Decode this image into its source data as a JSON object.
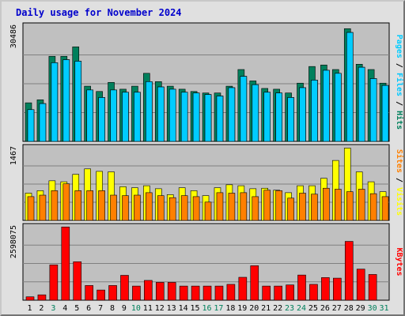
{
  "title": "Daily usage for November 2024",
  "colors": {
    "hits": "#00805c",
    "files": "#00c8ff",
    "pages": "#00ccff",
    "visits": "#ffff00",
    "sites": "#ff8000",
    "kbytes": "#ff0000",
    "panel_bg": "#c0c0c0",
    "weekday_label": "#000000",
    "weekend_label": "#00805c"
  },
  "chart_data": [
    {
      "type": "bar",
      "title": "Daily usage for November 2024",
      "panel": "hits-files-pages",
      "ylabel_max": "30486",
      "right_label": [
        "Pages",
        "Files",
        "Hits"
      ],
      "ylim": [
        0,
        30486
      ],
      "categories": [
        "1",
        "2",
        "3",
        "4",
        "5",
        "6",
        "7",
        "8",
        "9",
        "10",
        "11",
        "12",
        "13",
        "14",
        "15",
        "16",
        "17",
        "18",
        "19",
        "20",
        "21",
        "22",
        "23",
        "24",
        "25",
        "26",
        "27",
        "28",
        "29",
        "30",
        "31"
      ],
      "series": [
        {
          "name": "Hits",
          "values": [
            10200,
            11000,
            22500,
            22500,
            25000,
            14600,
            13200,
            15600,
            13800,
            14600,
            18000,
            15800,
            14600,
            13800,
            13200,
            12800,
            12800,
            14600,
            19000,
            16000,
            14000,
            13800,
            12800,
            15400,
            19800,
            20200,
            19000,
            29800,
            20400,
            19000,
            15400
          ]
        },
        {
          "name": "Files",
          "values": [
            8400,
            10000,
            20800,
            21600,
            21200,
            13600,
            11600,
            13600,
            13000,
            13000,
            15800,
            14400,
            13800,
            13000,
            12800,
            12400,
            12000,
            14200,
            17200,
            15000,
            13000,
            12800,
            11600,
            14200,
            16200,
            18800,
            18000,
            28800,
            19600,
            16600,
            14800
          ]
        },
        {
          "name": "Pages",
          "values": [
            8400,
            10000,
            20800,
            21600,
            21200,
            13600,
            11600,
            13600,
            13000,
            13000,
            15800,
            14400,
            13800,
            13000,
            12800,
            12400,
            12000,
            14200,
            17200,
            15000,
            13000,
            12800,
            11600,
            14200,
            16200,
            18800,
            18000,
            28800,
            19600,
            16600,
            14800
          ]
        }
      ]
    },
    {
      "type": "bar",
      "panel": "visits-sites",
      "ylabel_max": "1467",
      "right_label": [
        "Sites",
        "Visits"
      ],
      "ylim": [
        0,
        1467
      ],
      "categories": [
        "1",
        "2",
        "3",
        "4",
        "5",
        "6",
        "7",
        "8",
        "9",
        "10",
        "11",
        "12",
        "13",
        "14",
        "15",
        "16",
        "17",
        "18",
        "19",
        "20",
        "21",
        "22",
        "23",
        "24",
        "25",
        "26",
        "27",
        "28",
        "29",
        "30",
        "31"
      ],
      "series": [
        {
          "name": "Visits",
          "values": [
            550,
            600,
            800,
            780,
            930,
            1040,
            990,
            980,
            680,
            660,
            700,
            640,
            520,
            660,
            600,
            500,
            660,
            720,
            700,
            640,
            650,
            610,
            560,
            700,
            700,
            850,
            1210,
            1460,
            980,
            780,
            580
          ]
        },
        {
          "name": "Sites",
          "values": [
            480,
            510,
            600,
            740,
            600,
            600,
            600,
            510,
            500,
            510,
            560,
            500,
            460,
            500,
            480,
            370,
            560,
            550,
            560,
            480,
            610,
            600,
            450,
            550,
            530,
            650,
            630,
            580,
            630,
            540,
            480
          ]
        }
      ]
    },
    {
      "type": "bar",
      "panel": "kbytes",
      "ylabel_max": "2598075",
      "right_label": [
        "KBytes"
      ],
      "ylim": [
        0,
        2598075
      ],
      "categories": [
        "1",
        "2",
        "3",
        "4",
        "5",
        "6",
        "7",
        "8",
        "9",
        "10",
        "11",
        "12",
        "13",
        "14",
        "15",
        "16",
        "17",
        "18",
        "19",
        "20",
        "21",
        "22",
        "23",
        "24",
        "25",
        "26",
        "27",
        "28",
        "29",
        "30",
        "31"
      ],
      "series": [
        {
          "name": "KBytes",
          "values": [
            120000,
            190000,
            1250000,
            2590000,
            1360000,
            520000,
            360000,
            520000,
            880000,
            500000,
            700000,
            630000,
            630000,
            500000,
            500000,
            500000,
            500000,
            560000,
            810000,
            1220000,
            500000,
            500000,
            540000,
            890000,
            560000,
            800000,
            780000,
            2080000,
            1100000,
            910000,
            0
          ]
        }
      ]
    }
  ]
}
